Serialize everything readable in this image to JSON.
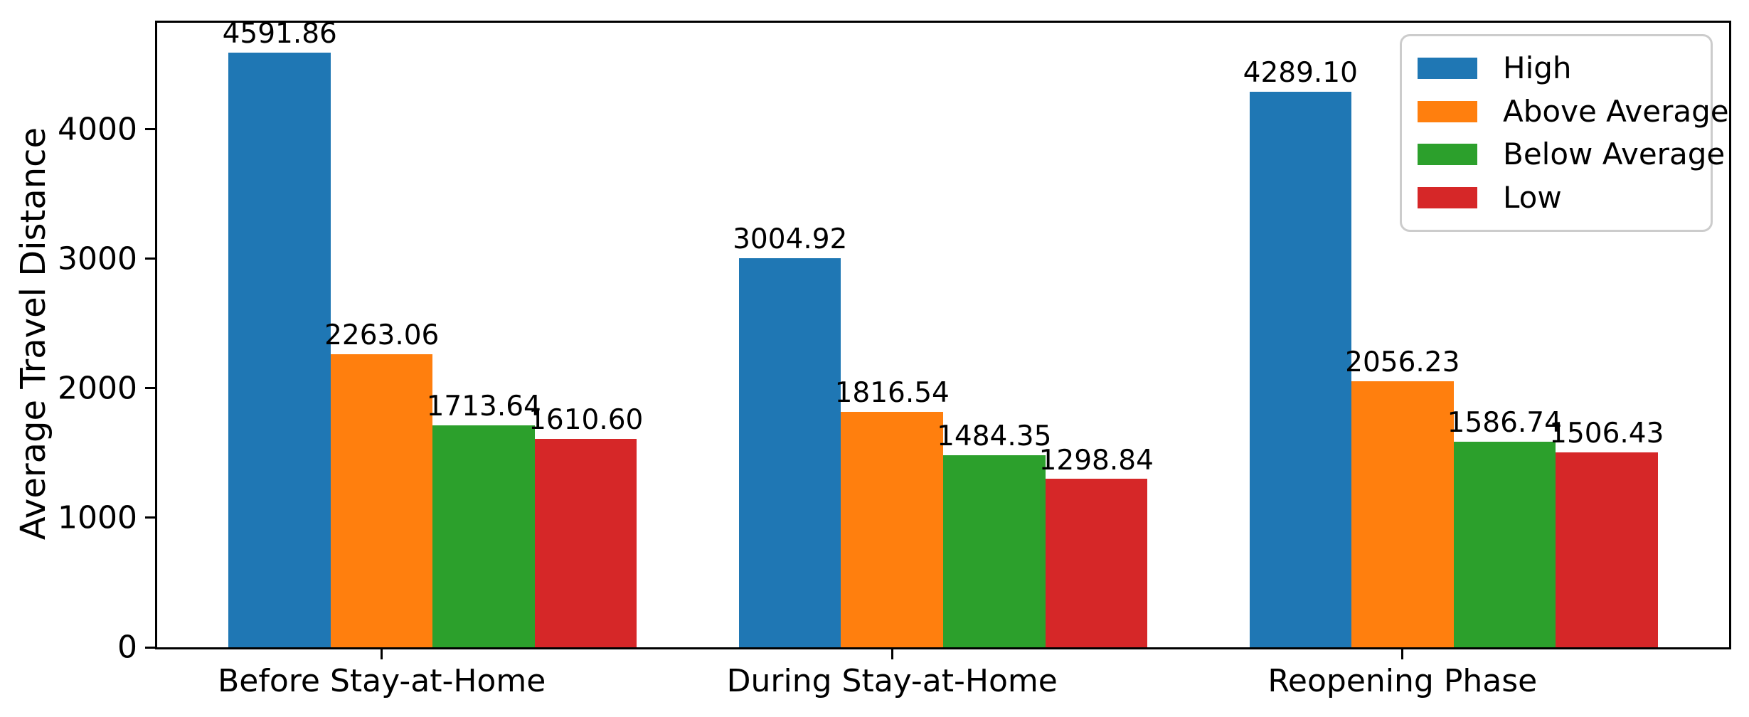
{
  "chart_data": {
    "type": "bar",
    "title": "",
    "xlabel": "",
    "ylabel": "Average Travel Distance",
    "categories": [
      "Before Stay-at-Home",
      "During Stay-at-Home",
      "Reopening Phase"
    ],
    "series": [
      {
        "name": "High",
        "color": "#1f77b4",
        "values": [
          4591.86,
          3004.92,
          4289.1
        ],
        "labels": [
          "4591.86",
          "3004.92",
          "4289.10"
        ]
      },
      {
        "name": "Above Average",
        "color": "#ff7f0e",
        "values": [
          2263.06,
          1816.54,
          2056.23
        ],
        "labels": [
          "2263.06",
          "1816.54",
          "2056.23"
        ]
      },
      {
        "name": "Below Average",
        "color": "#2ca02c",
        "values": [
          1713.64,
          1484.35,
          1586.74
        ],
        "labels": [
          "1713.64",
          "1484.35",
          "1586.74"
        ]
      },
      {
        "name": "Low",
        "color": "#d62728",
        "values": [
          1610.6,
          1298.84,
          1506.43
        ],
        "labels": [
          "1610.60",
          "1298.84",
          "1506.43"
        ]
      }
    ],
    "y_ticks": [
      0,
      1000,
      2000,
      3000,
      4000
    ],
    "y_tick_labels": [
      "0",
      "1000",
      "2000",
      "3000",
      "4000"
    ],
    "ylim": [
      0,
      4821.45
    ],
    "grid": false,
    "legend_position": "upper right",
    "axis_color": "#000000",
    "background_color": "#ffffff"
  }
}
